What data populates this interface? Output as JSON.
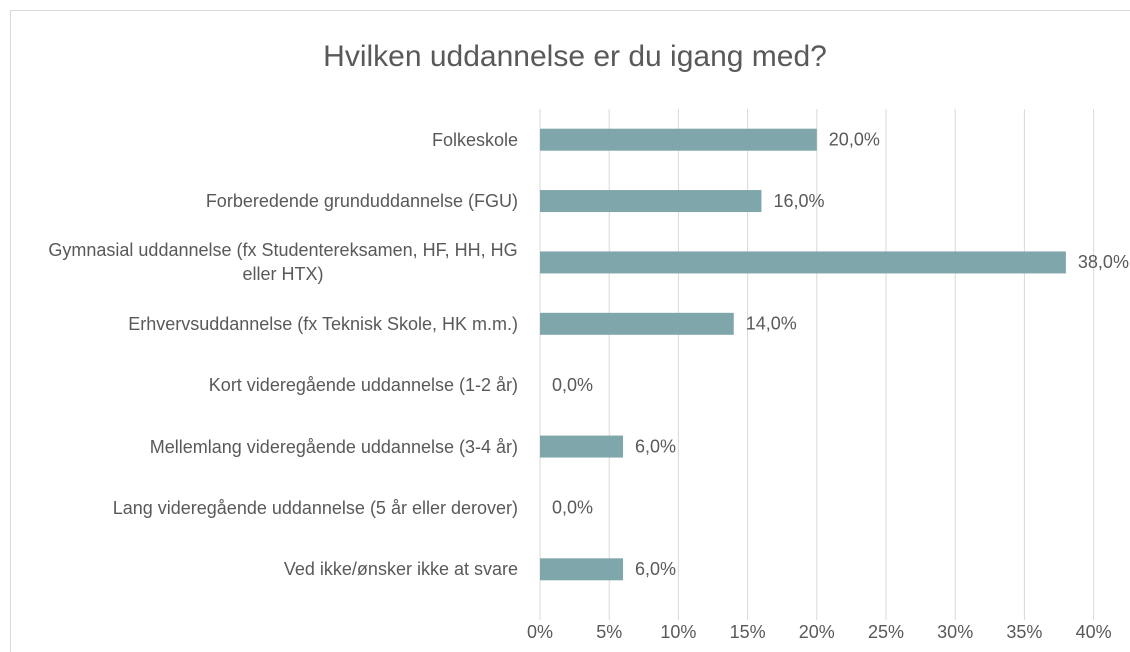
{
  "chart_data": {
    "type": "bar",
    "orientation": "horizontal",
    "title": "Hvilken uddannelse er du igang med?",
    "categories": [
      "Folkeskole",
      "Forberedende grunduddannelse (FGU)",
      "Gymnasial uddannelse (fx Studentereksamen, HF, HH, HG eller HTX)",
      "Erhvervsuddannelse (fx Teknisk Skole, HK m.m.)",
      "Kort videregående uddannelse (1-2 år)",
      "Mellemlang videregående uddannelse (3-4 år)",
      "Lang videregående uddannelse (5 år eller derover)",
      "Ved ikke/ønsker ikke at svare"
    ],
    "values": [
      20,
      16,
      38,
      14,
      0,
      6,
      0,
      6
    ],
    "value_labels": [
      "20,0%",
      "16,0%",
      "38,0%",
      "14,0%",
      "0,0%",
      "6,0%",
      "0,0%",
      "6,0%"
    ],
    "color": "#7fa7ab",
    "xlim": [
      0,
      40
    ],
    "xticks": [
      {
        "value": 0,
        "label": "0%"
      },
      {
        "value": 5,
        "label": "5%"
      },
      {
        "value": 10,
        "label": "10%"
      },
      {
        "value": 15,
        "label": "15%"
      },
      {
        "value": 20,
        "label": "20%"
      },
      {
        "value": 25,
        "label": "25%"
      },
      {
        "value": 30,
        "label": "30%"
      },
      {
        "value": 35,
        "label": "35%"
      },
      {
        "value": 40,
        "label": "40%"
      }
    ],
    "grid": true
  }
}
